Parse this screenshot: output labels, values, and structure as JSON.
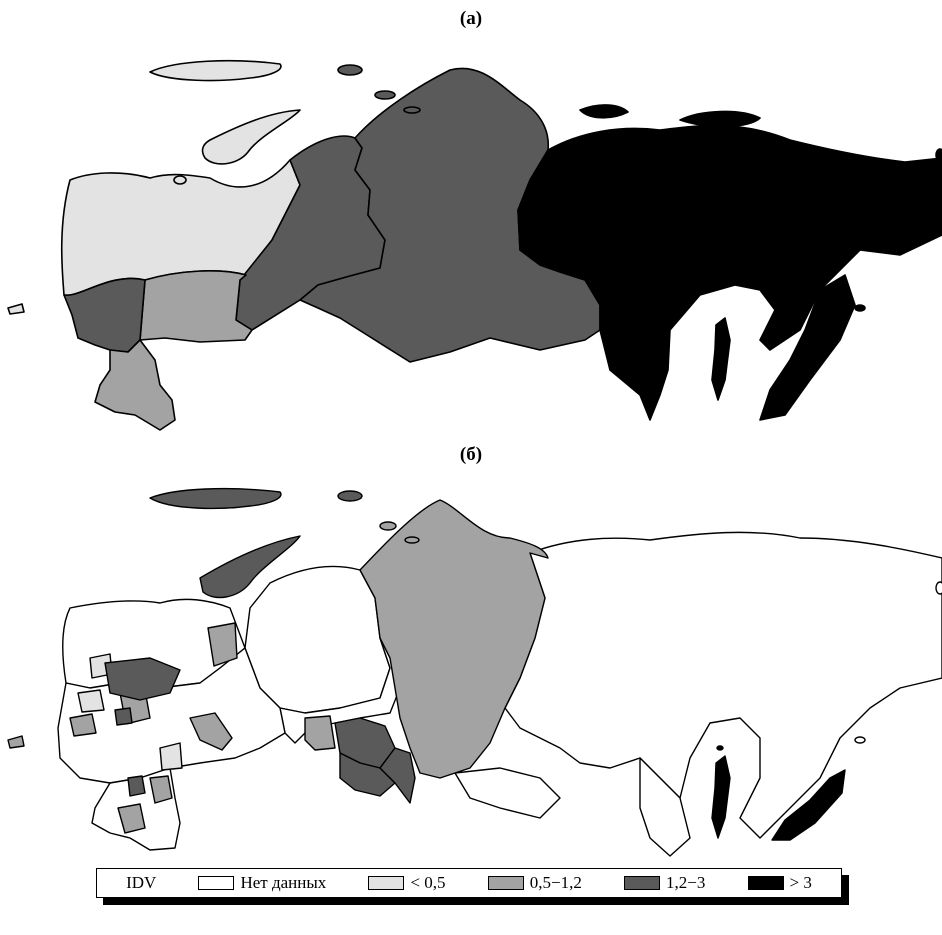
{
  "panels": [
    {
      "label": "(а)"
    },
    {
      "label": "(б)"
    }
  ],
  "legend": {
    "title": "IDV",
    "items": [
      {
        "label": "Нет данных",
        "color": "#ffffff"
      },
      {
        "label": "< 0,5",
        "color": "#e3e3e3"
      },
      {
        "label": "0,5−1,2",
        "color": "#a3a3a3"
      },
      {
        "label": "1,2−3",
        "color": "#5a5a5a"
      },
      {
        "label": "> 3",
        "color": "#000000"
      }
    ]
  }
}
